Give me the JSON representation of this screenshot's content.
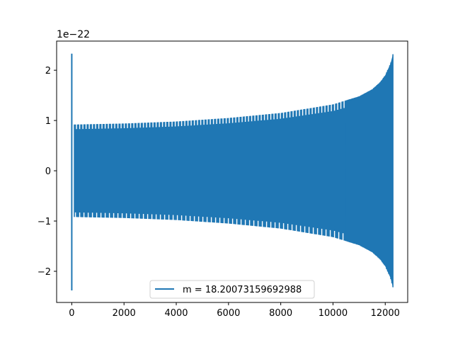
{
  "chart_data": {
    "type": "line",
    "title": "",
    "xlabel": "",
    "ylabel": "",
    "y_offset_label": "1e−22",
    "xlim": [
      -580,
      12860
    ],
    "ylim": [
      -2.62,
      2.58
    ],
    "x_ticks": [
      0,
      2000,
      4000,
      6000,
      8000,
      10000,
      12000
    ],
    "x_tick_labels": [
      "0",
      "2000",
      "4000",
      "6000",
      "8000",
      "10000",
      "12000"
    ],
    "y_ticks": [
      2,
      1,
      0,
      -1,
      -2
    ],
    "y_tick_labels": [
      "2",
      "1",
      "0",
      "−1",
      "−2"
    ],
    "grid": false,
    "legend_position": "lower center",
    "series": [
      {
        "name": "m = 18.20073159692988",
        "color": "#1f77b4",
        "envelope": {
          "x": [
            0,
            100,
            2000,
            4000,
            6000,
            8000,
            10000,
            11000,
            11500,
            11800,
            12000,
            12200,
            12300
          ],
          "upper": [
            2.33,
            0.92,
            0.94,
            0.98,
            1.05,
            1.15,
            1.32,
            1.48,
            1.62,
            1.76,
            1.9,
            2.13,
            2.33
          ],
          "lower": [
            -2.38,
            -0.92,
            -0.94,
            -0.98,
            -1.05,
            -1.15,
            -1.32,
            -1.48,
            -1.62,
            -1.76,
            -1.9,
            -2.13,
            -2.33
          ]
        },
        "x_end": 12300
      }
    ]
  }
}
